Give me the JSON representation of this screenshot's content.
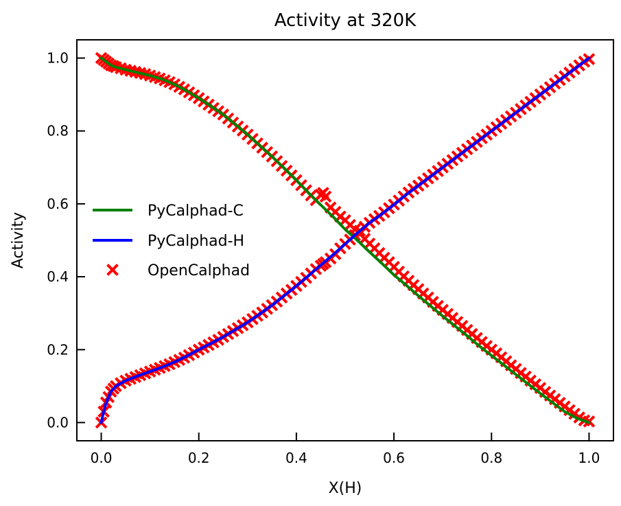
{
  "chart_data": {
    "type": "line",
    "title": "Activity at 320K",
    "xlabel": "X(H)",
    "ylabel": "Activity",
    "xlim": [
      -0.05,
      1.05
    ],
    "ylim": [
      -0.05,
      1.05
    ],
    "xticks": [
      0.0,
      0.2,
      0.4,
      0.6,
      0.8,
      1.0
    ],
    "xtick_labels": [
      "0.0",
      "0.2",
      "0.4",
      "0.6",
      "0.8",
      "1.0"
    ],
    "yticks": [
      0.0,
      0.2,
      0.4,
      0.6,
      0.8,
      1.0
    ],
    "ytick_labels": [
      "0.0",
      "0.2",
      "0.4",
      "0.6",
      "0.8",
      "1.0"
    ],
    "grid": false,
    "legend_position": "center-left",
    "series": [
      {
        "name": "PyCalphad-C",
        "style": "line",
        "color": "#008000",
        "x": [
          0.0,
          0.01,
          0.02,
          0.03,
          0.05,
          0.075,
          0.1,
          0.125,
          0.15,
          0.175,
          0.2,
          0.225,
          0.25,
          0.275,
          0.3,
          0.325,
          0.35,
          0.375,
          0.4,
          0.425,
          0.45,
          0.475,
          0.5,
          0.525,
          0.55,
          0.575,
          0.6,
          0.625,
          0.65,
          0.675,
          0.7,
          0.725,
          0.75,
          0.775,
          0.8,
          0.825,
          0.85,
          0.875,
          0.9,
          0.925,
          0.95,
          0.975,
          1.0
        ],
        "y": [
          1.0,
          0.99,
          0.98,
          0.975,
          0.968,
          0.96,
          0.952,
          0.942,
          0.928,
          0.91,
          0.89,
          0.868,
          0.845,
          0.818,
          0.79,
          0.76,
          0.73,
          0.698,
          0.665,
          0.63,
          0.597,
          0.565,
          0.53,
          0.5,
          0.468,
          0.437,
          0.405,
          0.377,
          0.348,
          0.32,
          0.292,
          0.265,
          0.238,
          0.21,
          0.184,
          0.158,
          0.132,
          0.106,
          0.08,
          0.055,
          0.03,
          0.012,
          0.0
        ]
      },
      {
        "name": "PyCalphad-H",
        "style": "line",
        "color": "#0000ff",
        "x": [
          0.0,
          0.005,
          0.01,
          0.02,
          0.03,
          0.05,
          0.075,
          0.1,
          0.125,
          0.15,
          0.175,
          0.2,
          0.225,
          0.25,
          0.275,
          0.3,
          0.325,
          0.35,
          0.375,
          0.4,
          0.425,
          0.45,
          0.475,
          0.5,
          0.525,
          0.55,
          0.575,
          0.6,
          0.625,
          0.65,
          0.675,
          0.7,
          0.725,
          0.75,
          0.775,
          0.8,
          0.825,
          0.85,
          0.875,
          0.9,
          0.925,
          0.95,
          0.975,
          1.0
        ],
        "y": [
          0.0,
          0.03,
          0.055,
          0.085,
          0.1,
          0.115,
          0.128,
          0.14,
          0.152,
          0.166,
          0.182,
          0.2,
          0.217,
          0.235,
          0.255,
          0.275,
          0.298,
          0.322,
          0.348,
          0.375,
          0.403,
          0.432,
          0.46,
          0.49,
          0.52,
          0.548,
          0.572,
          0.598,
          0.625,
          0.65,
          0.675,
          0.7,
          0.725,
          0.75,
          0.775,
          0.8,
          0.825,
          0.85,
          0.875,
          0.9,
          0.925,
          0.95,
          0.975,
          1.0
        ]
      },
      {
        "name": "OpenCalphad",
        "style": "marker",
        "marker": "x",
        "color": "#ff0000",
        "curves": [
          {
            "x": [
              0.0,
              0.005,
              0.01,
              0.015,
              0.02,
              0.025,
              0.03,
              0.04,
              0.05,
              0.06,
              0.07,
              0.08,
              0.09,
              0.1,
              0.11,
              0.12,
              0.13,
              0.14,
              0.15,
              0.16,
              0.17,
              0.18,
              0.19,
              0.2,
              0.21,
              0.22,
              0.23,
              0.24,
              0.25,
              0.26,
              0.27,
              0.28,
              0.29,
              0.3,
              0.31,
              0.32,
              0.33,
              0.34,
              0.35,
              0.36,
              0.37,
              0.38,
              0.39,
              0.4,
              0.41,
              0.42,
              0.43,
              0.44,
              0.45,
              0.455,
              0.46,
              0.47,
              0.48,
              0.49,
              0.5,
              0.51,
              0.52,
              0.53,
              0.54,
              0.55,
              0.56,
              0.57,
              0.58,
              0.59,
              0.6,
              0.61,
              0.62,
              0.63,
              0.64,
              0.65,
              0.66,
              0.67,
              0.68,
              0.69,
              0.7,
              0.71,
              0.72,
              0.73,
              0.74,
              0.75,
              0.76,
              0.77,
              0.78,
              0.79,
              0.8,
              0.81,
              0.82,
              0.83,
              0.84,
              0.85,
              0.86,
              0.87,
              0.88,
              0.89,
              0.9,
              0.91,
              0.92,
              0.93,
              0.94,
              0.95,
              0.96,
              0.97,
              0.98,
              0.99,
              1.0
            ],
            "y": [
              1.0,
              0.995,
              0.99,
              0.985,
              0.98,
              0.978,
              0.975,
              0.972,
              0.968,
              0.965,
              0.962,
              0.959,
              0.956,
              0.952,
              0.948,
              0.944,
              0.939,
              0.934,
              0.928,
              0.921,
              0.914,
              0.906,
              0.898,
              0.89,
              0.881,
              0.872,
              0.863,
              0.854,
              0.845,
              0.834,
              0.823,
              0.812,
              0.801,
              0.79,
              0.778,
              0.766,
              0.754,
              0.742,
              0.73,
              0.717,
              0.704,
              0.691,
              0.678,
              0.665,
              0.651,
              0.637,
              0.623,
              0.61,
              0.625,
              0.63,
              0.62,
              0.59,
              0.578,
              0.565,
              0.555,
              0.542,
              0.53,
              0.518,
              0.504,
              0.491,
              0.478,
              0.465,
              0.452,
              0.44,
              0.427,
              0.414,
              0.401,
              0.389,
              0.377,
              0.366,
              0.354,
              0.343,
              0.331,
              0.32,
              0.309,
              0.298,
              0.287,
              0.276,
              0.265,
              0.254,
              0.243,
              0.232,
              0.221,
              0.21,
              0.2,
              0.19,
              0.179,
              0.168,
              0.157,
              0.147,
              0.136,
              0.126,
              0.115,
              0.105,
              0.095,
              0.084,
              0.074,
              0.064,
              0.054,
              0.044,
              0.034,
              0.024,
              0.014,
              0.006,
              0.003
            ]
          },
          {
            "x": [
              0.0,
              0.005,
              0.01,
              0.015,
              0.02,
              0.025,
              0.03,
              0.04,
              0.05,
              0.06,
              0.07,
              0.08,
              0.09,
              0.1,
              0.11,
              0.12,
              0.13,
              0.14,
              0.15,
              0.16,
              0.17,
              0.18,
              0.19,
              0.2,
              0.21,
              0.22,
              0.23,
              0.24,
              0.25,
              0.26,
              0.27,
              0.28,
              0.29,
              0.3,
              0.31,
              0.32,
              0.33,
              0.34,
              0.35,
              0.36,
              0.37,
              0.38,
              0.39,
              0.4,
              0.41,
              0.42,
              0.43,
              0.44,
              0.45,
              0.455,
              0.46,
              0.47,
              0.48,
              0.49,
              0.5,
              0.51,
              0.52,
              0.53,
              0.54,
              0.55,
              0.56,
              0.57,
              0.58,
              0.59,
              0.6,
              0.61,
              0.62,
              0.63,
              0.64,
              0.65,
              0.66,
              0.67,
              0.68,
              0.69,
              0.7,
              0.71,
              0.72,
              0.73,
              0.74,
              0.75,
              0.76,
              0.77,
              0.78,
              0.79,
              0.8,
              0.81,
              0.82,
              0.83,
              0.84,
              0.85,
              0.86,
              0.87,
              0.88,
              0.89,
              0.9,
              0.91,
              0.92,
              0.93,
              0.94,
              0.95,
              0.96,
              0.97,
              0.98,
              0.99,
              1.0
            ],
            "y": [
              0.0,
              0.03,
              0.055,
              0.07,
              0.085,
              0.093,
              0.1,
              0.108,
              0.115,
              0.12,
              0.125,
              0.13,
              0.135,
              0.14,
              0.145,
              0.15,
              0.155,
              0.16,
              0.166,
              0.172,
              0.178,
              0.185,
              0.192,
              0.2,
              0.206,
              0.213,
              0.22,
              0.227,
              0.235,
              0.243,
              0.251,
              0.259,
              0.267,
              0.275,
              0.284,
              0.293,
              0.302,
              0.312,
              0.322,
              0.332,
              0.343,
              0.354,
              0.364,
              0.375,
              0.386,
              0.397,
              0.409,
              0.421,
              0.43,
              0.435,
              0.44,
              0.45,
              0.462,
              0.478,
              0.49,
              0.502,
              0.514,
              0.526,
              0.537,
              0.548,
              0.558,
              0.567,
              0.577,
              0.588,
              0.598,
              0.609,
              0.62,
              0.631,
              0.641,
              0.65,
              0.66,
              0.67,
              0.68,
              0.69,
              0.7,
              0.71,
              0.72,
              0.73,
              0.74,
              0.75,
              0.76,
              0.77,
              0.78,
              0.79,
              0.8,
              0.81,
              0.82,
              0.83,
              0.84,
              0.85,
              0.86,
              0.87,
              0.88,
              0.89,
              0.9,
              0.91,
              0.92,
              0.93,
              0.94,
              0.95,
              0.96,
              0.97,
              0.98,
              0.99,
              0.997
            ]
          }
        ]
      }
    ]
  }
}
